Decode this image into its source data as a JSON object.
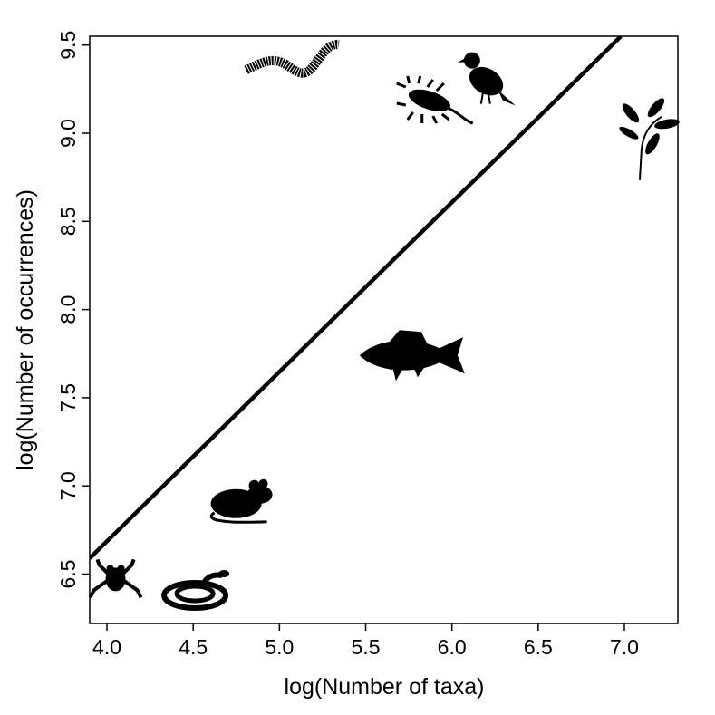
{
  "chart_data": {
    "type": "scatter",
    "x_label": "log(Number of taxa)",
    "y_label": "log(Number of occurrences)",
    "x": [
      4.05,
      4.51,
      4.77,
      5.07,
      5.77,
      5.89,
      6.19,
      7.11
    ],
    "y": [
      6.47,
      6.41,
      6.92,
      9.41,
      7.74,
      9.18,
      9.3,
      8.96
    ],
    "color": "#000000",
    "trend_line": {
      "x": [
        3.9,
        6.98
      ],
      "y": [
        6.59,
        9.55
      ]
    },
    "xlim": [
      3.9,
      7.31
    ],
    "ylim": [
      6.22,
      9.55
    ],
    "xticks": [
      {
        "value": 4,
        "label": "4.0"
      },
      4.5,
      {
        "value": 5,
        "label": "5.0"
      },
      5.5,
      {
        "value": 6,
        "label": "6.0"
      },
      6.5,
      {
        "value": 7,
        "label": "7.0"
      }
    ],
    "yticks": [
      6.5,
      {
        "value": 7,
        "label": "7.0"
      },
      7.5,
      {
        "value": 8,
        "label": "8.0"
      },
      8.5,
      {
        "value": 9,
        "label": "9.0"
      },
      9.5
    ],
    "grid": false
  }
}
